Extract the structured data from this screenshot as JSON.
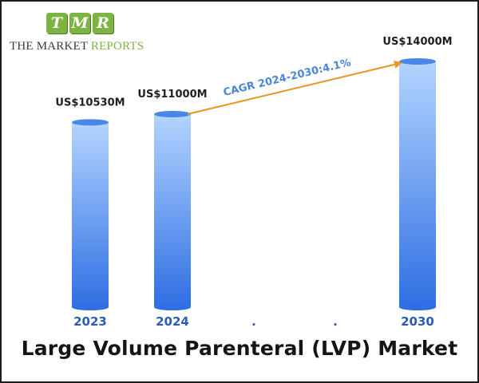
{
  "brand": {
    "letters": [
      "T",
      "M",
      "R"
    ],
    "name_part1": "THE MARKET ",
    "name_part2": "REPORTS",
    "color": "#7cb342"
  },
  "chart_data": {
    "type": "bar",
    "title": "Large Volume Parenteral (LVP) Market",
    "categories": [
      "2023",
      "2024",
      ".",
      ".",
      "2030"
    ],
    "values": [
      10530,
      11000,
      null,
      null,
      14000
    ],
    "value_labels": [
      "US$10530M",
      "US$11000M",
      "",
      "",
      "US$14000M"
    ],
    "annotation": {
      "text": "CAGR 2024-2030:4.1%",
      "from": "2024",
      "to": "2030",
      "color": "#e8961e",
      "text_color": "#4a86d8"
    },
    "bar_color_top": "#b3d4ff",
    "bar_color_bottom": "#2f6fe3",
    "tick_color": "#2a5cb8",
    "xlabel": "",
    "ylabel": ""
  }
}
